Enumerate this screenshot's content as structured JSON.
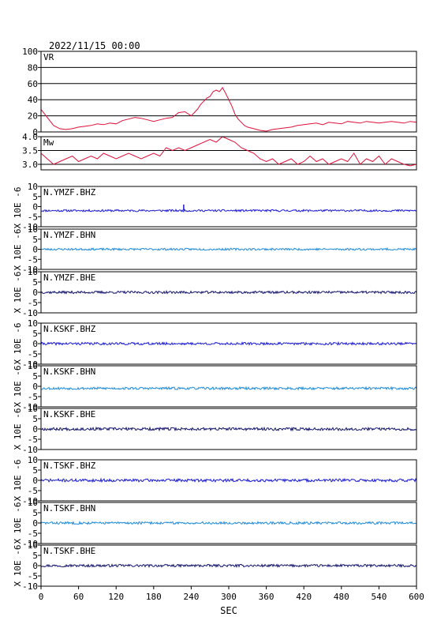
{
  "header": {
    "datetime": "2022/11/15  00:00"
  },
  "chart_data": [
    {
      "type": "line",
      "panel": "vr",
      "label": "VR",
      "ylim": [
        0,
        100
      ],
      "yticks": [
        0,
        20,
        40,
        60,
        80,
        100
      ],
      "grid": true,
      "color": "#e0103a",
      "x": [
        0,
        10,
        20,
        30,
        40,
        50,
        60,
        70,
        80,
        90,
        100,
        110,
        120,
        130,
        140,
        150,
        160,
        170,
        180,
        190,
        200,
        210,
        220,
        230,
        240,
        250,
        255,
        260,
        265,
        270,
        275,
        280,
        285,
        290,
        295,
        300,
        305,
        310,
        315,
        320,
        325,
        330,
        340,
        350,
        360,
        370,
        380,
        390,
        400,
        410,
        420,
        430,
        440,
        450,
        460,
        470,
        480,
        490,
        500,
        510,
        520,
        530,
        540,
        550,
        560,
        570,
        580,
        590,
        600
      ],
      "values": [
        28,
        18,
        8,
        4,
        3,
        4,
        6,
        7,
        8,
        10,
        9,
        11,
        10,
        14,
        16,
        18,
        17,
        15,
        13,
        15,
        17,
        18,
        24,
        25,
        20,
        28,
        34,
        38,
        42,
        44,
        50,
        52,
        50,
        55,
        48,
        40,
        32,
        22,
        16,
        12,
        8,
        6,
        4,
        2,
        1,
        3,
        4,
        5,
        6,
        8,
        9,
        10,
        11,
        9,
        12,
        11,
        10,
        13,
        12,
        11,
        13,
        12,
        11,
        12,
        13,
        12,
        11,
        13,
        12
      ]
    },
    {
      "type": "line",
      "panel": "mw",
      "label": "Mw",
      "ylim": [
        2.8,
        4.0
      ],
      "yticks": [
        3.0,
        3.5,
        4.0
      ],
      "grid": true,
      "color": "#e0103a",
      "x": [
        0,
        10,
        20,
        30,
        40,
        50,
        60,
        70,
        80,
        90,
        100,
        110,
        120,
        130,
        140,
        150,
        160,
        170,
        180,
        190,
        200,
        210,
        220,
        230,
        240,
        250,
        260,
        270,
        280,
        290,
        300,
        310,
        320,
        330,
        340,
        350,
        360,
        370,
        380,
        390,
        400,
        410,
        420,
        430,
        440,
        450,
        460,
        470,
        480,
        490,
        500,
        510,
        520,
        530,
        540,
        550,
        560,
        570,
        580,
        590,
        600
      ],
      "values": [
        3.4,
        3.2,
        3.0,
        3.1,
        3.2,
        3.3,
        3.1,
        3.2,
        3.3,
        3.2,
        3.4,
        3.3,
        3.2,
        3.3,
        3.4,
        3.3,
        3.2,
        3.3,
        3.4,
        3.3,
        3.6,
        3.5,
        3.6,
        3.5,
        3.6,
        3.7,
        3.8,
        3.9,
        3.8,
        4.0,
        3.9,
        3.8,
        3.6,
        3.5,
        3.4,
        3.2,
        3.1,
        3.2,
        3.0,
        3.1,
        3.2,
        3.0,
        3.1,
        3.3,
        3.1,
        3.2,
        3.0,
        3.1,
        3.2,
        3.1,
        3.4,
        3.0,
        3.2,
        3.1,
        3.3,
        3.0,
        3.2,
        3.1,
        3.0,
        2.95,
        3.0
      ]
    },
    {
      "type": "line",
      "panel": "waveform",
      "label": "N.YMZF.BHZ",
      "ylim": [
        -10,
        10
      ],
      "yticks": [
        -10,
        -5,
        0,
        5,
        10
      ],
      "baseline": -2,
      "amplitude": 0.5,
      "spikes": [
        {
          "x": 228,
          "value": 1
        }
      ],
      "color": "#1a1ad0",
      "seed": 11
    },
    {
      "type": "line",
      "panel": "waveform",
      "label": "N.YMZF.BHN",
      "ylim": [
        -10,
        10
      ],
      "yticks": [
        -10,
        -5,
        0,
        5,
        10
      ],
      "baseline": 0,
      "amplitude": 0.5,
      "color": "#1e8ad8",
      "seed": 23
    },
    {
      "type": "line",
      "panel": "waveform",
      "label": "N.YMZF.BHE",
      "ylim": [
        -10,
        10
      ],
      "yticks": [
        -10,
        -5,
        0,
        5,
        10
      ],
      "baseline": 0,
      "amplitude": 0.6,
      "color": "#14146e",
      "seed": 37
    },
    {
      "type": "line",
      "panel": "waveform",
      "label": "N.KSKF.BHZ",
      "ylim": [
        -10,
        10
      ],
      "yticks": [
        -10,
        -5,
        0,
        5,
        10
      ],
      "baseline": 0,
      "amplitude": 0.6,
      "color": "#1a1ad0",
      "seed": 41
    },
    {
      "type": "line",
      "panel": "waveform",
      "label": "N.KSKF.BHN",
      "ylim": [
        -10,
        10
      ],
      "yticks": [
        -10,
        -5,
        0,
        5,
        10
      ],
      "baseline": -1,
      "amplitude": 0.6,
      "color": "#1e8ad8",
      "seed": 53
    },
    {
      "type": "line",
      "panel": "waveform",
      "label": "N.KSKF.BHE",
      "ylim": [
        -10,
        10
      ],
      "yticks": [
        -10,
        -5,
        0,
        5,
        10
      ],
      "baseline": 0,
      "amplitude": 0.7,
      "color": "#14146e",
      "seed": 67
    },
    {
      "type": "line",
      "panel": "waveform",
      "label": "N.TSKF.BHZ",
      "ylim": [
        -10,
        10
      ],
      "yticks": [
        -10,
        -5,
        0,
        5,
        10
      ],
      "baseline": 0,
      "amplitude": 0.7,
      "color": "#1a1ad0",
      "seed": 71
    },
    {
      "type": "line",
      "panel": "waveform",
      "label": "N.TSKF.BHN",
      "ylim": [
        -10,
        10
      ],
      "yticks": [
        -10,
        -5,
        0,
        5,
        10
      ],
      "baseline": 0,
      "amplitude": 0.6,
      "color": "#1e8ad8",
      "seed": 83
    },
    {
      "type": "line",
      "panel": "waveform",
      "label": "N.TSKF.BHE",
      "ylim": [
        -10,
        10
      ],
      "yticks": [
        -10,
        -5,
        0,
        5,
        10
      ],
      "baseline": 0,
      "amplitude": 0.6,
      "color": "#14146e",
      "seed": 97
    }
  ],
  "axes": {
    "unit_label": "X 10E -6",
    "xlabel": "SEC",
    "xlim": [
      0,
      600
    ],
    "xticks": [
      0,
      60,
      120,
      180,
      240,
      300,
      360,
      420,
      480,
      540,
      600
    ]
  }
}
